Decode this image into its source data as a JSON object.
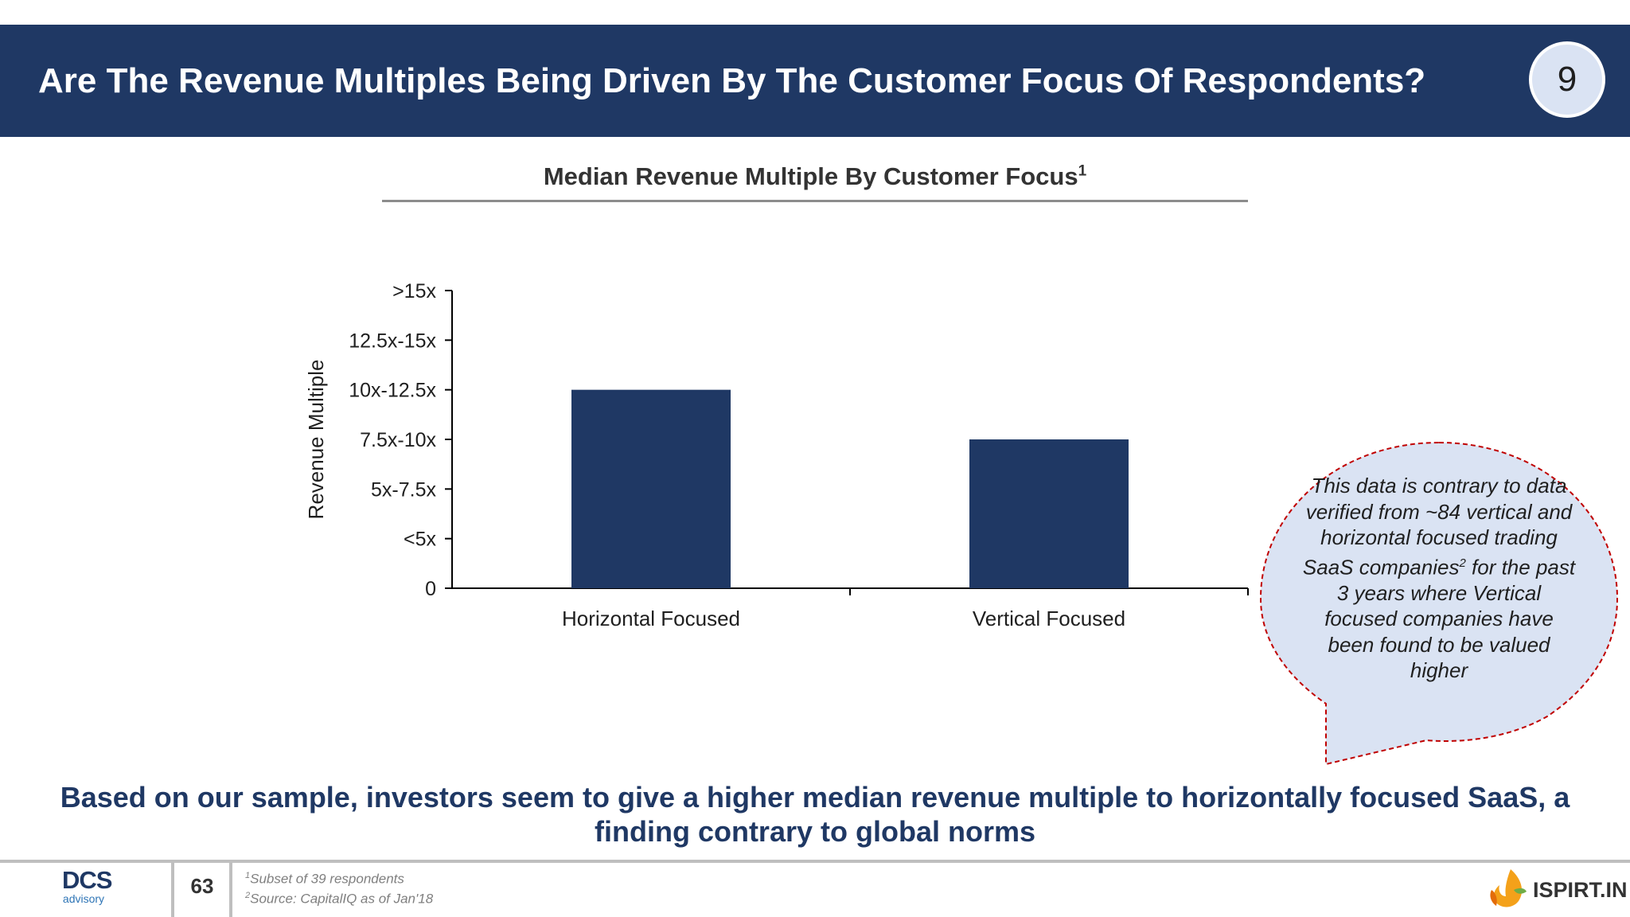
{
  "header": {
    "title": "Are The Revenue Multiples Being Driven By The Customer Focus Of Respondents?",
    "page_badge": "9"
  },
  "chart_data": {
    "type": "bar",
    "title": "Median Revenue Multiple By Customer Focus",
    "title_footnote_marker": "1",
    "ylabel": "Revenue Multiple",
    "xlabel": "",
    "y_tick_labels": [
      "0",
      "<5x",
      "5x-7.5x",
      "7.5x-10x",
      "10x-12.5x",
      "12.5x-15x",
      ">15x"
    ],
    "ylim": [
      0,
      6
    ],
    "categories": [
      "Horizontal Focused",
      "Vertical Focused"
    ],
    "values": [
      4,
      3
    ],
    "value_labels": [
      "10x-12.5x",
      "7.5x-10x"
    ],
    "bar_color": "#1f3864",
    "grid": false,
    "legend": "none"
  },
  "callout": {
    "text_before": "This data is contrary to data verified from ~84 vertical and horizontal focused trading SaaS companies",
    "footnote_marker": "2",
    "text_after": " for the past 3 years where Vertical focused companies have been found to be valued higher",
    "fill_color": "#dae3f3",
    "border_color": "#c00000"
  },
  "conclusion": "Based on our sample, investors seem to give a higher median revenue multiple to horizontally focused SaaS, a finding contrary to global norms",
  "footer": {
    "logo_main": "DCS",
    "logo_sub": "advisory",
    "page_number": "63",
    "footnote1_marker": "1",
    "footnote1": "Subset of 39 respondents",
    "footnote2_marker": "2",
    "footnote2": "Source: CapitalIQ as of Jan'18",
    "brand": "ISPIRT.IN",
    "brand_icon": "flame-leaf-icon"
  },
  "colors": {
    "header_bg": "#1f3864",
    "accent": "#1f3864",
    "badge_bg": "#dae3f3"
  }
}
